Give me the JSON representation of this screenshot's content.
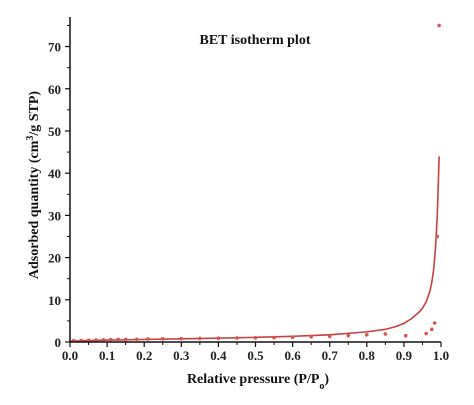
{
  "chart_data": {
    "type": "scatter",
    "title": "BET isotherm plot",
    "xlabel": "Relative pressure (P/P",
    "xlabel_sub": "o",
    "xlabel_end": ")",
    "ylabel": "Adsorbed quantity (cm",
    "ylabel_sup": "3",
    "ylabel_end": "/g STP)",
    "xlim": [
      0.0,
      1.0
    ],
    "ylim": [
      0,
      77
    ],
    "xticks": [
      "0.0",
      "0.1",
      "0.2",
      "0.3",
      "0.4",
      "0.5",
      "0.6",
      "0.7",
      "0.8",
      "0.9",
      "1.0"
    ],
    "yticks": [
      "0",
      "10",
      "20",
      "30",
      "40",
      "50",
      "60",
      "70"
    ],
    "grid": false,
    "colors": {
      "series": "#d9534f",
      "line": "#c94040",
      "axis": "#111111"
    },
    "series": [
      {
        "kind": "points",
        "x": [
          0.01,
          0.03,
          0.05,
          0.07,
          0.09,
          0.11,
          0.13,
          0.15,
          0.18,
          0.21,
          0.25,
          0.3,
          0.35,
          0.4,
          0.45,
          0.5,
          0.55,
          0.6,
          0.65,
          0.7,
          0.75,
          0.8,
          0.85,
          0.905,
          0.96,
          0.975,
          0.983,
          0.99,
          0.995
        ],
        "y": [
          0.3,
          0.35,
          0.4,
          0.45,
          0.5,
          0.55,
          0.6,
          0.62,
          0.65,
          0.7,
          0.75,
          0.8,
          0.85,
          0.9,
          0.95,
          1.0,
          1.05,
          1.15,
          1.25,
          1.35,
          1.5,
          1.7,
          1.9,
          1.5,
          2.0,
          3.0,
          4.5,
          25.0,
          75.0
        ]
      },
      {
        "kind": "line",
        "x": [
          0.0,
          0.05,
          0.1,
          0.2,
          0.3,
          0.4,
          0.5,
          0.6,
          0.7,
          0.8,
          0.85,
          0.88,
          0.9,
          0.92,
          0.94,
          0.95,
          0.96,
          0.97,
          0.975,
          0.98,
          0.985,
          0.99,
          0.995
        ],
        "y": [
          0.2,
          0.35,
          0.45,
          0.6,
          0.75,
          0.9,
          1.1,
          1.35,
          1.7,
          2.4,
          3.0,
          3.7,
          4.4,
          5.5,
          7.0,
          8.0,
          9.5,
          12.0,
          14.0,
          17.0,
          22.0,
          30.0,
          44.0
        ]
      }
    ]
  }
}
